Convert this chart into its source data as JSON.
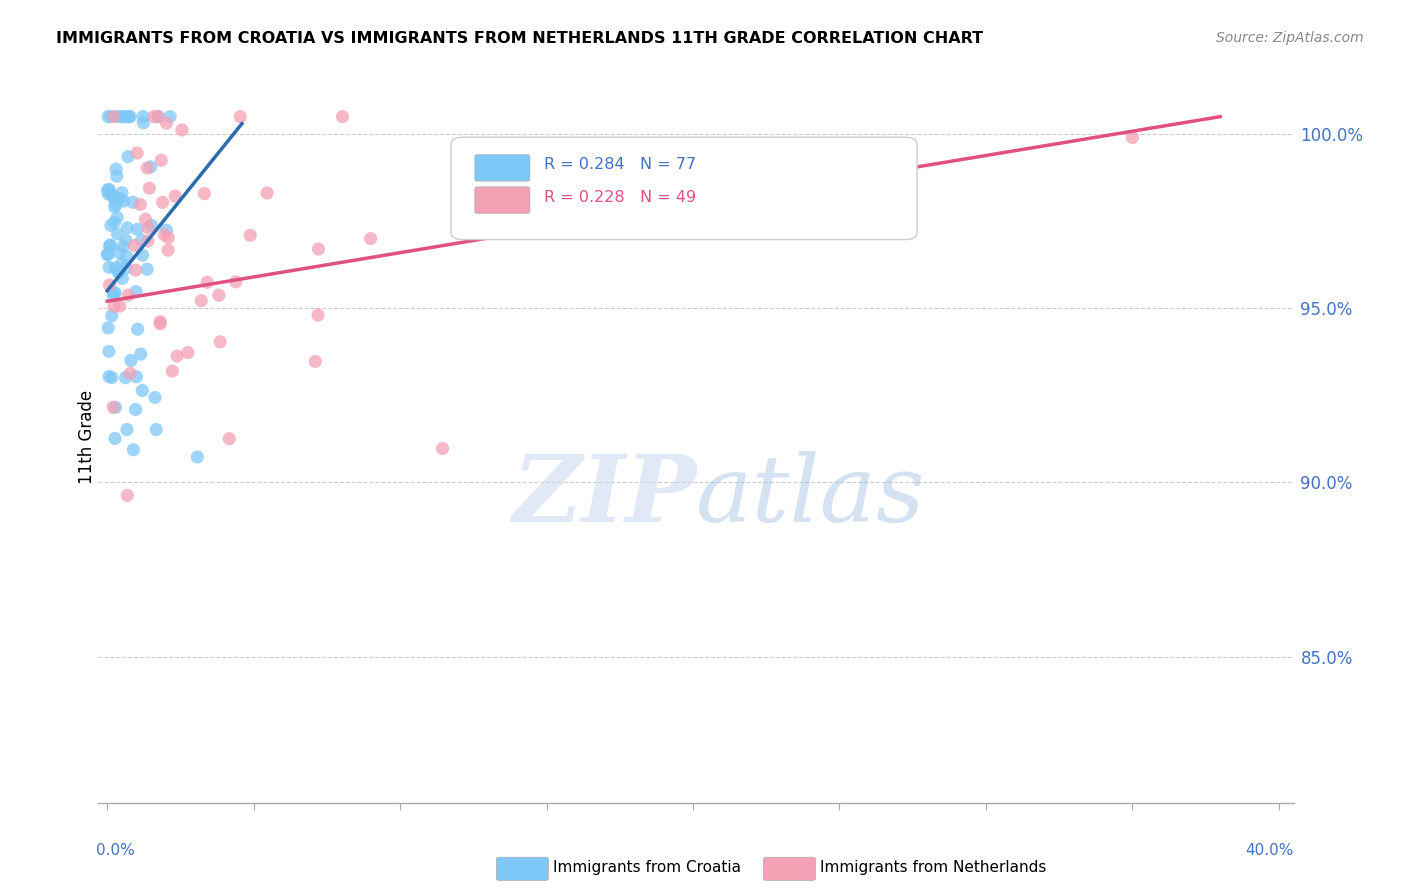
{
  "title": "IMMIGRANTS FROM CROATIA VS IMMIGRANTS FROM NETHERLANDS 11TH GRADE CORRELATION CHART",
  "source": "Source: ZipAtlas.com",
  "ylabel": "11th Grade",
  "ytick_vals": [
    0.85,
    0.9,
    0.95,
    1.0
  ],
  "ytick_labels": [
    "85.0%",
    "90.0%",
    "95.0%",
    "100.0%"
  ],
  "xlim": [
    -0.003,
    0.405
  ],
  "ylim": [
    0.808,
    1.018
  ],
  "color_croatia": "#7EC8F8",
  "color_netherlands": "#F4A0B5",
  "line_color_croatia": "#2B6CB0",
  "line_color_netherlands": "#E05080",
  "tick_color": "#4472C4",
  "legend_R_croatia": "R = 0.284",
  "legend_N_croatia": "N = 77",
  "legend_R_netherlands": "R = 0.228",
  "legend_N_netherlands": "N = 49",
  "watermark_zip_color": "#C8D8EE",
  "watermark_atlas_color": "#A0C0E0"
}
